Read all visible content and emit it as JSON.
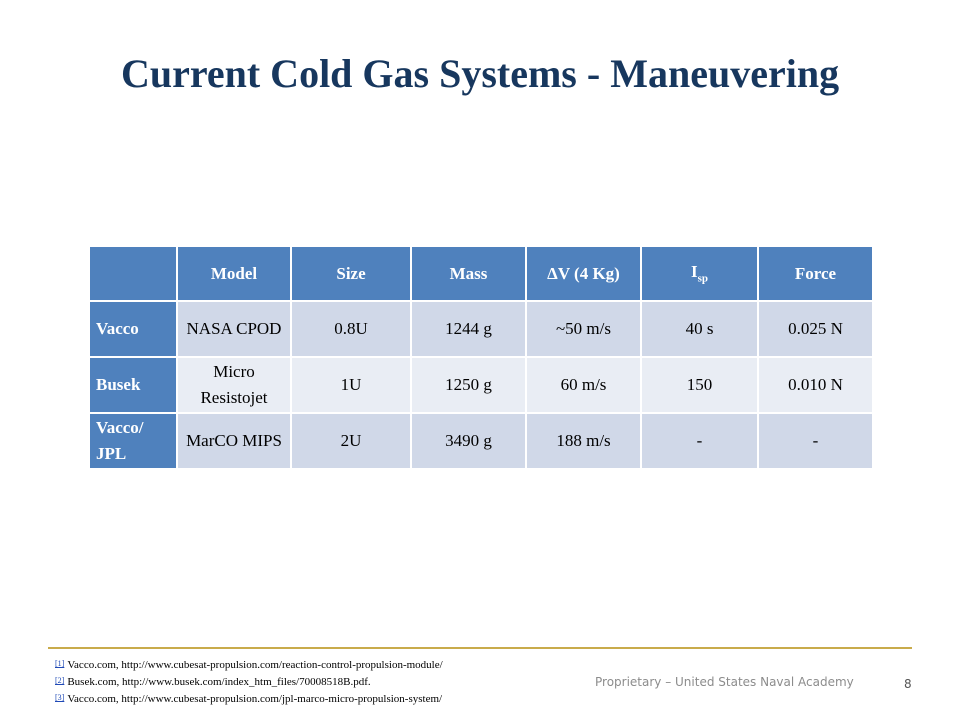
{
  "slide": {
    "title": "Current Cold Gas Systems - Maneuvering",
    "table": {
      "header": [
        "Model",
        "Size",
        "Mass",
        "ΔV (4 Kg)",
        {
          "symbol": "I",
          "subscript": "sp"
        },
        "Force"
      ],
      "rows": [
        [
          "Vacco",
          "NASA CPOD",
          "0.8U",
          "1244 g",
          "~50 m/s",
          "40 s",
          "0.025 N"
        ],
        [
          "Busek",
          "Micro Resistojet",
          "1U",
          "1250 g",
          "60 m/s",
          "150",
          "0.010 N"
        ],
        [
          "Vacco/ JPL",
          "MarCO MIPS",
          "2U",
          "3490 g",
          "188 m/s",
          "-",
          "-"
        ]
      ]
    },
    "footnotes": [
      {
        "marker": "[1]",
        "text": "Vacco.com, http://www.cubesat-propulsion.com/reaction-control-propulsion-module/"
      },
      {
        "marker": "[2]",
        "text": "Busek.com, http://www.busek.com/index_htm_files/70008518B.pdf."
      },
      {
        "marker": "[3]",
        "text": "Vacco.com, http://www.cubesat-propulsion.com/jpl-marco-micro-propulsion-system/"
      }
    ],
    "footer": "Proprietary – United States Naval Academy",
    "page_number": "8"
  }
}
